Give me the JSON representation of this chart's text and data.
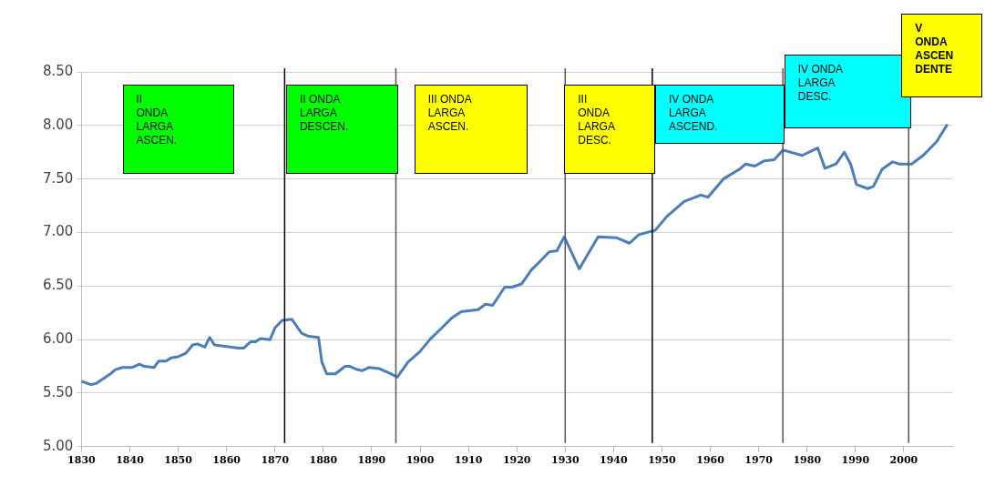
{
  "chart_data": {
    "type": "line",
    "x": [
      1830,
      1832,
      1833,
      1836,
      1837,
      1838.5,
      1840.5,
      1842,
      1843,
      1845,
      1846,
      1847.5,
      1848.5,
      1850,
      1851.5,
      1853,
      1854,
      1855.5,
      1856.5,
      1857.5,
      1862.5,
      1863.5,
      1865,
      1866,
      1867,
      1869,
      1870,
      1871.5,
      1873.5,
      1875.5,
      1877,
      1879,
      1879.7,
      1880.7,
      1882.5,
      1884.5,
      1885.5,
      1887,
      1888,
      1889.5,
      1891.5,
      1894,
      1895.3,
      1897.5,
      1900,
      1902,
      1904.5,
      1906.5,
      1908.5,
      1912,
      1913.5,
      1915,
      1917.5,
      1919,
      1921,
      1923,
      1925,
      1926.7,
      1928.3,
      1929.8,
      1932.9,
      1936.8,
      1940.7,
      1943.3,
      1945.2,
      1948.6,
      1951,
      1954.6,
      1958,
      1959.5,
      1962.7,
      1966,
      1967.3,
      1969.2,
      1971.2,
      1973.2,
      1975,
      1979,
      1982.2,
      1983.7,
      1986,
      1987.7,
      1989,
      1990.2,
      1992.5,
      1993.7,
      1995.5,
      1997.7,
      1999,
      2001.6,
      2004,
      2006.8,
      2009
    ],
    "series": [
      {
        "color": "#4a7ebb",
        "values": [
          5.61,
          5.58,
          5.59,
          5.68,
          5.72,
          5.74,
          5.74,
          5.77,
          5.75,
          5.74,
          5.8,
          5.8,
          5.83,
          5.84,
          5.87,
          5.95,
          5.96,
          5.93,
          6.02,
          5.95,
          5.92,
          5.92,
          5.98,
          5.98,
          6.01,
          6.0,
          6.11,
          6.18,
          6.19,
          6.06,
          6.03,
          6.02,
          5.79,
          5.68,
          5.68,
          5.75,
          5.75,
          5.72,
          5.71,
          5.74,
          5.73,
          5.68,
          5.65,
          5.79,
          5.89,
          6.0,
          6.11,
          6.2,
          6.26,
          6.28,
          6.33,
          6.32,
          6.49,
          6.49,
          6.52,
          6.65,
          6.74,
          6.82,
          6.83,
          6.96,
          6.66,
          6.96,
          6.95,
          6.9,
          6.98,
          7.02,
          7.15,
          7.29,
          7.35,
          7.33,
          7.5,
          7.59,
          7.64,
          7.62,
          7.67,
          7.68,
          7.77,
          7.72,
          7.79,
          7.6,
          7.64,
          7.75,
          7.64,
          7.45,
          7.41,
          7.43,
          7.59,
          7.66,
          7.64,
          7.64,
          7.72,
          7.85,
          8.01
        ]
      }
    ],
    "xlim": [
      1830,
      2010
    ],
    "xticks": [
      1830,
      1840,
      1850,
      1860,
      1870,
      1880,
      1890,
      1900,
      1910,
      1920,
      1930,
      1940,
      1950,
      1960,
      1970,
      1980,
      1990,
      2000
    ],
    "ylim": [
      5,
      8.5
    ],
    "yticks": [
      {
        "value": 5,
        "label": "5.00"
      },
      {
        "value": 5.5,
        "label": "5.50"
      },
      {
        "value": 6,
        "label": "6.00"
      },
      {
        "value": 6.5,
        "label": "6.50"
      },
      {
        "value": 7,
        "label": "7.00"
      },
      {
        "value": 7.5,
        "label": "7.50"
      },
      {
        "value": 8,
        "label": "8.00"
      },
      {
        "value": 8.5,
        "label": "8.50"
      }
    ],
    "grid": "y",
    "legend": false,
    "marker": "none",
    "line_style": "solid",
    "ref_lines": [
      {
        "axis": "x",
        "value": 1872,
        "color": "#000000"
      },
      {
        "axis": "x",
        "value": 1895,
        "color": "#555555"
      },
      {
        "axis": "x",
        "value": 1930,
        "color": "#555555"
      },
      {
        "axis": "x",
        "value": 1948,
        "color": "#000000"
      },
      {
        "axis": "x",
        "value": 1975,
        "color": "#555555"
      },
      {
        "axis": "x",
        "value": 2001,
        "color": "#555555"
      }
    ],
    "annotations": [
      "II\nONDA\nLARGA\nASCEN.",
      "II ONDA\nLARGA\nDESCEN.",
      "III ONDA\nLARGA\nASCEN.",
      "III\nONDA\nLARGA\nDESC.",
      "IV ONDA\nLARGA\nASCEND.",
      "IV ONDA\nLARGA\nDESC.",
      "V\nONDA\nASCEN\nDENTE"
    ]
  }
}
